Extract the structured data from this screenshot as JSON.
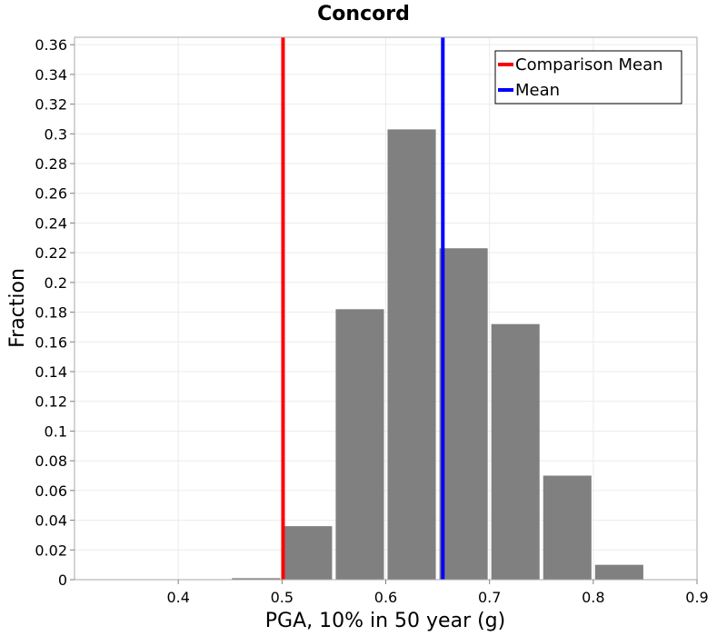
{
  "chart_data": {
    "type": "bar",
    "title": "Concord",
    "xlabel": "PGA, 10% in 50 year (g)",
    "ylabel": "Fraction",
    "xlim": [
      0.3,
      0.9
    ],
    "ylim": [
      0,
      0.365
    ],
    "xticks": [
      0.4,
      0.5,
      0.6,
      0.7,
      0.8,
      0.9
    ],
    "xtick_labels": [
      "0.4",
      "0.5",
      "0.6",
      "0.7",
      "0.8",
      "0.9"
    ],
    "yticks": [
      0,
      0.02,
      0.04,
      0.06,
      0.08,
      0.1,
      0.12,
      0.14,
      0.16,
      0.18,
      0.2,
      0.22,
      0.24,
      0.26,
      0.28,
      0.3,
      0.32,
      0.34,
      0.36
    ],
    "ytick_labels": [
      "0",
      "0.02",
      "0.04",
      "0.06",
      "0.08",
      "0.1",
      "0.12",
      "0.14",
      "0.16",
      "0.18",
      "0.2",
      "0.22",
      "0.24",
      "0.26",
      "0.28",
      "0.3",
      "0.32",
      "0.34",
      "0.36"
    ],
    "bins": [
      {
        "x0": 0.3,
        "x1": 0.35,
        "value": 0.0
      },
      {
        "x0": 0.35,
        "x1": 0.4,
        "value": 0.0
      },
      {
        "x0": 0.4,
        "x1": 0.45,
        "value": 0.0
      },
      {
        "x0": 0.45,
        "x1": 0.5,
        "value": 0.001
      },
      {
        "x0": 0.5,
        "x1": 0.55,
        "value": 0.036
      },
      {
        "x0": 0.55,
        "x1": 0.6,
        "value": 0.182
      },
      {
        "x0": 0.6,
        "x1": 0.65,
        "value": 0.303
      },
      {
        "x0": 0.65,
        "x1": 0.7,
        "value": 0.223
      },
      {
        "x0": 0.7,
        "x1": 0.75,
        "value": 0.172
      },
      {
        "x0": 0.75,
        "x1": 0.8,
        "value": 0.07
      },
      {
        "x0": 0.8,
        "x1": 0.85,
        "value": 0.01
      },
      {
        "x0": 0.85,
        "x1": 0.9,
        "value": 0.0
      }
    ],
    "bar_color": "#808080",
    "vlines": [
      {
        "name": "Comparison Mean",
        "x": 0.501,
        "color": "#ff0000"
      },
      {
        "name": "Mean",
        "x": 0.655,
        "color": "#0000ff"
      }
    ],
    "legend": {
      "position": "top-right",
      "entries": [
        {
          "label": "Comparison Mean",
          "color": "#ff0000"
        },
        {
          "label": "Mean",
          "color": "#0000ff"
        }
      ]
    },
    "grid": true
  }
}
